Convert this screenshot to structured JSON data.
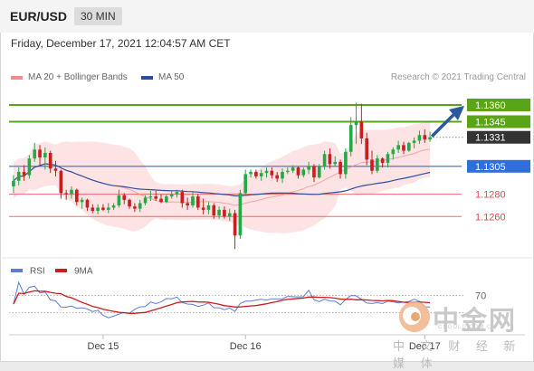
{
  "header": {
    "symbol": "EUR/USD",
    "timeframe": "30 MIN"
  },
  "timestamp": "Friday, December 17, 2021 12:04:57 AM CET",
  "legend": {
    "bollinger": {
      "label": "MA 20 + Bollinger Bands",
      "color": "#f08c8c"
    },
    "ma50": {
      "label": "MA 50",
      "color": "#2b4f9e"
    }
  },
  "credit": "Research © 2021 Trading Central",
  "rsi_legend": {
    "rsi": {
      "label": "RSI",
      "color": "#5b7fd6"
    },
    "ma9": {
      "label": "9MA",
      "color": "#d11a1a"
    }
  },
  "watermark": {
    "brand": "中金网",
    "site": "CNGOLD.COM.CN",
    "tagline": "中 文 财 经 新 媒 体"
  },
  "chart_data": {
    "type": "candlestick",
    "x_tick_labels": [
      "Dec 15",
      "Dec 16",
      "Dec 17"
    ],
    "levels": [
      {
        "value": 1.136,
        "label": "1.1360",
        "type": "resistance"
      },
      {
        "value": 1.1345,
        "label": "1.1345",
        "type": "resistance"
      },
      {
        "value": 1.1331,
        "label": "1.1331",
        "type": "last"
      },
      {
        "value": 1.1305,
        "label": "1.1305",
        "type": "pivot"
      },
      {
        "value": 1.128,
        "label": "1.1280",
        "type": "support"
      },
      {
        "value": 1.126,
        "label": "1.1260",
        "type": "support"
      }
    ],
    "colors": {
      "up": "#27a844",
      "down": "#c81e1e",
      "resistance": "#5aa417",
      "pivot": "#2e6fd8",
      "support": "#e5484d",
      "last": "#333333",
      "arrow": "#2a5a9e",
      "band": "#fde0e0"
    },
    "rsi": {
      "level_label": "70",
      "levels": [
        70,
        30
      ],
      "ylim": [
        0,
        100
      ]
    },
    "ylim": [
      1.1227,
      1.1377
    ],
    "candles": [
      [
        1.1287,
        1.1297,
        1.1281,
        1.1292
      ],
      [
        1.1292,
        1.1304,
        1.1288,
        1.13
      ],
      [
        1.13,
        1.1306,
        1.1292,
        1.1297
      ],
      [
        1.1297,
        1.1315,
        1.1294,
        1.1312
      ],
      [
        1.1312,
        1.1326,
        1.1309,
        1.132
      ],
      [
        1.132,
        1.1324,
        1.1306,
        1.1313
      ],
      [
        1.1313,
        1.1322,
        1.1302,
        1.1317
      ],
      [
        1.1317,
        1.1319,
        1.1299,
        1.1303
      ],
      [
        1.1303,
        1.131,
        1.1296,
        1.1301
      ],
      [
        1.1301,
        1.1302,
        1.1276,
        1.1281
      ],
      [
        1.1281,
        1.1284,
        1.1275,
        1.128
      ],
      [
        1.128,
        1.1287,
        1.1276,
        1.1284
      ],
      [
        1.1284,
        1.1285,
        1.127,
        1.1273
      ],
      [
        1.1273,
        1.1277,
        1.1267,
        1.1275
      ],
      [
        1.1275,
        1.1276,
        1.1265,
        1.1268
      ],
      [
        1.1268,
        1.1271,
        1.1263,
        1.1265
      ],
      [
        1.1265,
        1.1271,
        1.1262,
        1.1268
      ],
      [
        1.1268,
        1.1271,
        1.1265,
        1.1266
      ],
      [
        1.1266,
        1.1272,
        1.1263,
        1.1268
      ],
      [
        1.1268,
        1.1272,
        1.1266,
        1.127
      ],
      [
        1.127,
        1.1284,
        1.1268,
        1.1279
      ],
      [
        1.1279,
        1.1281,
        1.1271,
        1.1275
      ],
      [
        1.1275,
        1.1276,
        1.1267,
        1.1269
      ],
      [
        1.1269,
        1.1272,
        1.1264,
        1.1267
      ],
      [
        1.1267,
        1.1275,
        1.1264,
        1.1272
      ],
      [
        1.1272,
        1.1279,
        1.127,
        1.1277
      ],
      [
        1.1277,
        1.1283,
        1.1274,
        1.1278
      ],
      [
        1.1278,
        1.1283,
        1.1274,
        1.1276
      ],
      [
        1.1276,
        1.128,
        1.1272,
        1.1273
      ],
      [
        1.1273,
        1.128,
        1.1272,
        1.1278
      ],
      [
        1.1278,
        1.1283,
        1.1276,
        1.128
      ],
      [
        1.128,
        1.1284,
        1.1277,
        1.1282
      ],
      [
        1.1282,
        1.1284,
        1.1268,
        1.1272
      ],
      [
        1.1272,
        1.1277,
        1.1266,
        1.127
      ],
      [
        1.127,
        1.1282,
        1.1268,
        1.1278
      ],
      [
        1.1278,
        1.128,
        1.1266,
        1.1268
      ],
      [
        1.1268,
        1.1276,
        1.1262,
        1.1266
      ],
      [
        1.1266,
        1.1273,
        1.1262,
        1.127
      ],
      [
        1.127,
        1.1272,
        1.1258,
        1.1261
      ],
      [
        1.1261,
        1.1269,
        1.1258,
        1.1266
      ],
      [
        1.1266,
        1.1269,
        1.1258,
        1.126
      ],
      [
        1.126,
        1.1267,
        1.1256,
        1.1263
      ],
      [
        1.1263,
        1.1266,
        1.1231,
        1.1243
      ],
      [
        1.1243,
        1.1284,
        1.124,
        1.1281
      ],
      [
        1.1281,
        1.1302,
        1.1279,
        1.1298
      ],
      [
        1.1298,
        1.1302,
        1.1295,
        1.13
      ],
      [
        1.13,
        1.1302,
        1.1294,
        1.1296
      ],
      [
        1.1296,
        1.1302,
        1.1292,
        1.1299
      ],
      [
        1.1299,
        1.1304,
        1.1295,
        1.1301
      ],
      [
        1.1301,
        1.1304,
        1.1294,
        1.1297
      ],
      [
        1.1297,
        1.13,
        1.1291,
        1.1294
      ],
      [
        1.1294,
        1.1303,
        1.129,
        1.13
      ],
      [
        1.13,
        1.1304,
        1.1298,
        1.1301
      ],
      [
        1.1301,
        1.1306,
        1.1299,
        1.1304
      ],
      [
        1.1304,
        1.1305,
        1.1294,
        1.1297
      ],
      [
        1.1297,
        1.1304,
        1.1295,
        1.1302
      ],
      [
        1.1302,
        1.1309,
        1.1298,
        1.1305
      ],
      [
        1.1305,
        1.1307,
        1.1291,
        1.1295
      ],
      [
        1.1295,
        1.1307,
        1.1294,
        1.1305
      ],
      [
        1.1305,
        1.1319,
        1.1302,
        1.1316
      ],
      [
        1.1316,
        1.1321,
        1.1303,
        1.1307
      ],
      [
        1.1307,
        1.1314,
        1.1305,
        1.1309
      ],
      [
        1.1309,
        1.1311,
        1.1294,
        1.1298
      ],
      [
        1.1298,
        1.1321,
        1.1294,
        1.1318
      ],
      [
        1.1318,
        1.1349,
        1.1314,
        1.1342
      ],
      [
        1.1342,
        1.1362,
        1.1325,
        1.1345
      ],
      [
        1.1345,
        1.1361,
        1.1325,
        1.133
      ],
      [
        1.133,
        1.1335,
        1.1306,
        1.1311
      ],
      [
        1.1311,
        1.1319,
        1.1298,
        1.1301
      ],
      [
        1.1301,
        1.1315,
        1.1299,
        1.1312
      ],
      [
        1.1312,
        1.1313,
        1.1304,
        1.1308
      ],
      [
        1.1308,
        1.1318,
        1.1304,
        1.1316
      ],
      [
        1.1316,
        1.1322,
        1.1311,
        1.132
      ],
      [
        1.132,
        1.1328,
        1.1317,
        1.1324
      ],
      [
        1.1324,
        1.1327,
        1.1316,
        1.1319
      ],
      [
        1.1319,
        1.1327,
        1.1318,
        1.1326
      ],
      [
        1.1326,
        1.1331,
        1.1321,
        1.1328
      ],
      [
        1.1328,
        1.1337,
        1.1325,
        1.1333
      ],
      [
        1.1333,
        1.1338,
        1.1326,
        1.1329
      ],
      [
        1.1329,
        1.1336,
        1.1327,
        1.1331
      ]
    ]
  }
}
